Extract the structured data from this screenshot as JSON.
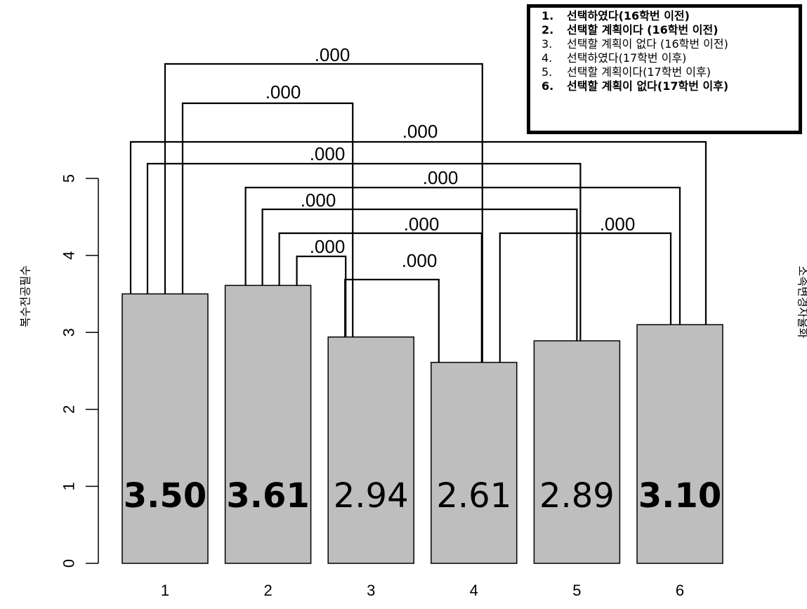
{
  "chart_data": {
    "type": "bar",
    "categories": [
      "1",
      "2",
      "3",
      "4",
      "5",
      "6"
    ],
    "values": [
      3.5,
      3.61,
      2.94,
      2.61,
      2.89,
      3.1
    ],
    "value_labels": [
      "3.50",
      "3.61",
      "2.94",
      "2.61",
      "2.89",
      "3.10"
    ],
    "bold_values": [
      true,
      true,
      false,
      false,
      false,
      true
    ],
    "ylabel": "복수전공필수",
    "right_label_partial": "소속변경자율화",
    "y_ticks": [
      "0",
      "1",
      "2",
      "3",
      "4",
      "5"
    ],
    "ylim": [
      0,
      5.5
    ],
    "bar_color": "#bebebe",
    "comparisons": [
      {
        "a": 1,
        "b": 4,
        "p": ".000"
      },
      {
        "a": 1,
        "b": 3,
        "p": ".000"
      },
      {
        "a": 1,
        "b": 6,
        "p": ".000"
      },
      {
        "a": 1,
        "b": 5,
        "p": ".000"
      },
      {
        "a": 2,
        "b": 6,
        "p": ".000"
      },
      {
        "a": 2,
        "b": 5,
        "p": ".000"
      },
      {
        "a": 2,
        "b": 4,
        "p": ".000"
      },
      {
        "a": 2,
        "b": 3,
        "p": ".000"
      },
      {
        "a": 3,
        "b": 4,
        "p": ".000"
      },
      {
        "a": 4,
        "b": 6,
        "p": ".000"
      }
    ]
  },
  "legend": {
    "items": [
      {
        "num": "1.",
        "text": "선택하였다(16학번 이전)",
        "bold": true
      },
      {
        "num": "2.",
        "text": "선택할 계획이다 (16학번 이전)",
        "bold": true
      },
      {
        "num": "3.",
        "text": "선택할 계획이 없다 (16학번 이전)",
        "bold": false
      },
      {
        "num": "4.",
        "text": "선택하였다(17학번 이후)",
        "bold": false
      },
      {
        "num": "5.",
        "text": "선택할 계획이다(17학번 이후)",
        "bold": false
      },
      {
        "num": "6.",
        "text": "선택할 계획이 없다(17학번 이후)",
        "bold": true
      }
    ]
  }
}
